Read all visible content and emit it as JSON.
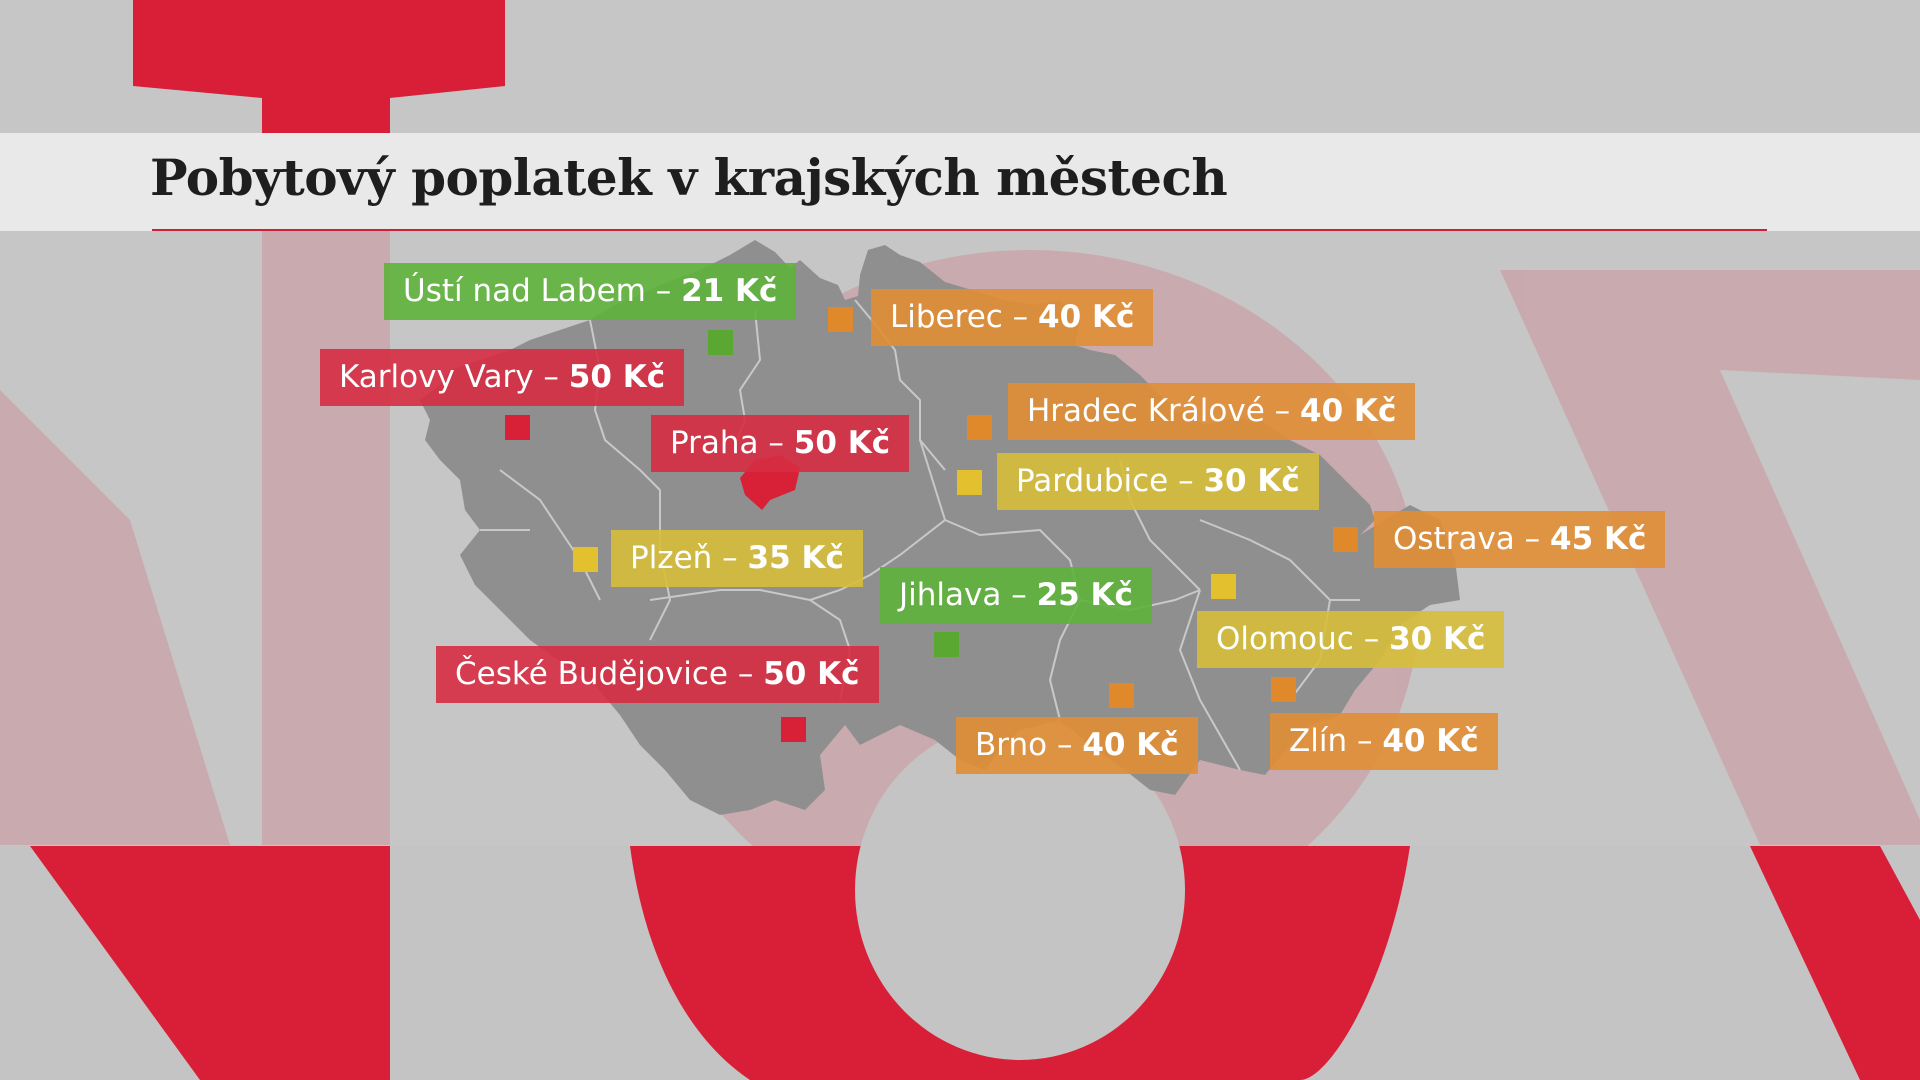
{
  "title": "Pobytový poplatek v krajských městech",
  "colors": {
    "green": "#6bb544",
    "red": "#d4394f",
    "orange": "#e0973f",
    "yellow": "#d9c243",
    "marker_green": "#5aa832",
    "marker_red": "#d82136",
    "marker_orange": "#e0892a",
    "marker_yellow": "#e2c02e",
    "map_fill": "#8f8f8f",
    "accent": "#cf2037"
  },
  "cities": [
    {
      "name": "Ústí nad Labem",
      "sep": " – ",
      "fee": "21 Kč",
      "color": "green"
    },
    {
      "name": "Liberec",
      "sep": " – ",
      "fee": "40 Kč",
      "color": "orange"
    },
    {
      "name": "Karlovy Vary",
      "sep": " – ",
      "fee": "50 Kč",
      "color": "red"
    },
    {
      "name": "Hradec Králové",
      "sep": " – ",
      "fee": "40 Kč",
      "color": "orange"
    },
    {
      "name": "Praha",
      "sep": " – ",
      "fee": "50 Kč",
      "color": "red"
    },
    {
      "name": "Pardubice",
      "sep": " – ",
      "fee": "30 Kč",
      "color": "yellow"
    },
    {
      "name": "Ostrava",
      "sep": " – ",
      "fee": "45 Kč",
      "color": "orange"
    },
    {
      "name": "Plzeň",
      "sep": " – ",
      "fee": "35 Kč",
      "color": "yellow"
    },
    {
      "name": "Jihlava",
      "sep": " – ",
      "fee": "25 Kč",
      "color": "green"
    },
    {
      "name": "Olomouc",
      "sep": " – ",
      "fee": "30 Kč",
      "color": "yellow"
    },
    {
      "name": "České Budějovice",
      "sep": " – ",
      "fee": "50 Kč",
      "color": "red"
    },
    {
      "name": "Brno",
      "sep": " – ",
      "fee": "40 Kč",
      "color": "orange"
    },
    {
      "name": "Zlín",
      "sep": " – ",
      "fee": "40 Kč",
      "color": "orange"
    }
  ]
}
